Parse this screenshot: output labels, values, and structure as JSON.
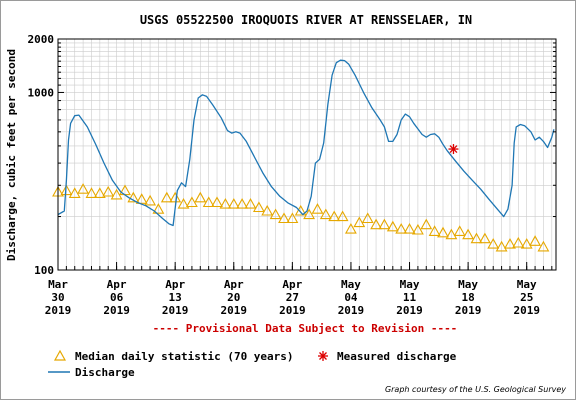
{
  "chart_data": {
    "type": "line",
    "title": "USGS 05522500 IROQUOIS RIVER AT RENSSELAER, IN",
    "ylabel": "Discharge, cubic feet per second",
    "y_scale": "log",
    "ylim": [
      100,
      2000
    ],
    "y_ticks": [
      {
        "value": 100,
        "label": "100"
      },
      {
        "value": 1000,
        "label": "1000"
      },
      {
        "value": 2000,
        "label": "2000"
      }
    ],
    "x_range": [
      "2019-03-30",
      "2019-05-28T12:00"
    ],
    "x_ticks": [
      {
        "date": "2019-03-30",
        "month": "Mar",
        "day": "30",
        "year": "2019"
      },
      {
        "date": "2019-04-06",
        "month": "Apr",
        "day": "06",
        "year": "2019"
      },
      {
        "date": "2019-04-13",
        "month": "Apr",
        "day": "13",
        "year": "2019"
      },
      {
        "date": "2019-04-20",
        "month": "Apr",
        "day": "20",
        "year": "2019"
      },
      {
        "date": "2019-04-27",
        "month": "Apr",
        "day": "27",
        "year": "2019"
      },
      {
        "date": "2019-05-04",
        "month": "May",
        "day": "04",
        "year": "2019"
      },
      {
        "date": "2019-05-11",
        "month": "May",
        "day": "11",
        "year": "2019"
      },
      {
        "date": "2019-05-18",
        "month": "May",
        "day": "18",
        "year": "2019"
      },
      {
        "date": "2019-05-25",
        "month": "May",
        "day": "25",
        "year": "2019"
      }
    ],
    "grid": true,
    "series": [
      {
        "name": "Discharge",
        "kind": "line",
        "color": "#1f77b4",
        "points": [
          {
            "x": "2019-03-30T00:00",
            "y": 205
          },
          {
            "x": "2019-03-30T18:00",
            "y": 215
          },
          {
            "x": "2019-03-31T00:00",
            "y": 320
          },
          {
            "x": "2019-03-31T06:00",
            "y": 540
          },
          {
            "x": "2019-03-31T12:00",
            "y": 670
          },
          {
            "x": "2019-04-01T00:00",
            "y": 740
          },
          {
            "x": "2019-04-01T12:00",
            "y": 745
          },
          {
            "x": "2019-04-02T12:00",
            "y": 640
          },
          {
            "x": "2019-04-03T12:00",
            "y": 510
          },
          {
            "x": "2019-04-04T12:00",
            "y": 400
          },
          {
            "x": "2019-04-05T12:00",
            "y": 320
          },
          {
            "x": "2019-04-06T12:00",
            "y": 275
          },
          {
            "x": "2019-04-07T12:00",
            "y": 255
          },
          {
            "x": "2019-04-08T12:00",
            "y": 240
          },
          {
            "x": "2019-04-09T12:00",
            "y": 230
          },
          {
            "x": "2019-04-10T12:00",
            "y": 215
          },
          {
            "x": "2019-04-11T12:00",
            "y": 195
          },
          {
            "x": "2019-04-12T06:00",
            "y": 182
          },
          {
            "x": "2019-04-12T18:00",
            "y": 178
          },
          {
            "x": "2019-04-13T06:00",
            "y": 280
          },
          {
            "x": "2019-04-13T18:00",
            "y": 310
          },
          {
            "x": "2019-04-14T06:00",
            "y": 295
          },
          {
            "x": "2019-04-14T18:00",
            "y": 420
          },
          {
            "x": "2019-04-15T06:00",
            "y": 700
          },
          {
            "x": "2019-04-15T18:00",
            "y": 930
          },
          {
            "x": "2019-04-16T06:00",
            "y": 970
          },
          {
            "x": "2019-04-16T18:00",
            "y": 950
          },
          {
            "x": "2019-04-17T12:00",
            "y": 850
          },
          {
            "x": "2019-04-18T12:00",
            "y": 720
          },
          {
            "x": "2019-04-19T06:00",
            "y": 610
          },
          {
            "x": "2019-04-19T18:00",
            "y": 590
          },
          {
            "x": "2019-04-20T06:00",
            "y": 600
          },
          {
            "x": "2019-04-20T18:00",
            "y": 590
          },
          {
            "x": "2019-04-21T12:00",
            "y": 530
          },
          {
            "x": "2019-04-22T12:00",
            "y": 430
          },
          {
            "x": "2019-04-23T12:00",
            "y": 350
          },
          {
            "x": "2019-04-24T12:00",
            "y": 295
          },
          {
            "x": "2019-04-25T12:00",
            "y": 260
          },
          {
            "x": "2019-04-26T12:00",
            "y": 238
          },
          {
            "x": "2019-04-27T12:00",
            "y": 225
          },
          {
            "x": "2019-04-28T06:00",
            "y": 205
          },
          {
            "x": "2019-04-28T18:00",
            "y": 215
          },
          {
            "x": "2019-04-29T06:00",
            "y": 260
          },
          {
            "x": "2019-04-29T18:00",
            "y": 400
          },
          {
            "x": "2019-04-30T06:00",
            "y": 420
          },
          {
            "x": "2019-04-30T18:00",
            "y": 520
          },
          {
            "x": "2019-05-01T06:00",
            "y": 860
          },
          {
            "x": "2019-05-01T18:00",
            "y": 1250
          },
          {
            "x": "2019-05-02T06:00",
            "y": 1470
          },
          {
            "x": "2019-05-02T18:00",
            "y": 1520
          },
          {
            "x": "2019-05-03T06:00",
            "y": 1510
          },
          {
            "x": "2019-05-03T18:00",
            "y": 1440
          },
          {
            "x": "2019-05-04T12:00",
            "y": 1250
          },
          {
            "x": "2019-05-05T12:00",
            "y": 1000
          },
          {
            "x": "2019-05-06T12:00",
            "y": 820
          },
          {
            "x": "2019-05-07T12:00",
            "y": 700
          },
          {
            "x": "2019-05-08T00:00",
            "y": 640
          },
          {
            "x": "2019-05-08T12:00",
            "y": 530
          },
          {
            "x": "2019-05-09T00:00",
            "y": 530
          },
          {
            "x": "2019-05-09T12:00",
            "y": 580
          },
          {
            "x": "2019-05-10T00:00",
            "y": 700
          },
          {
            "x": "2019-05-10T12:00",
            "y": 755
          },
          {
            "x": "2019-05-11T00:00",
            "y": 730
          },
          {
            "x": "2019-05-11T12:00",
            "y": 670
          },
          {
            "x": "2019-05-12T12:00",
            "y": 580
          },
          {
            "x": "2019-05-13T00:00",
            "y": 560
          },
          {
            "x": "2019-05-13T12:00",
            "y": 580
          },
          {
            "x": "2019-05-14T00:00",
            "y": 585
          },
          {
            "x": "2019-05-14T12:00",
            "y": 560
          },
          {
            "x": "2019-05-15T00:00",
            "y": 510
          },
          {
            "x": "2019-05-15T12:00",
            "y": 470
          },
          {
            "x": "2019-05-16T12:00",
            "y": 410
          },
          {
            "x": "2019-05-17T12:00",
            "y": 360
          },
          {
            "x": "2019-05-18T12:00",
            "y": 320
          },
          {
            "x": "2019-05-19T12:00",
            "y": 285
          },
          {
            "x": "2019-05-20T12:00",
            "y": 250
          },
          {
            "x": "2019-05-21T12:00",
            "y": 220
          },
          {
            "x": "2019-05-22T06:00",
            "y": 200
          },
          {
            "x": "2019-05-22T18:00",
            "y": 220
          },
          {
            "x": "2019-05-23T06:00",
            "y": 300
          },
          {
            "x": "2019-05-23T12:00",
            "y": 520
          },
          {
            "x": "2019-05-23T18:00",
            "y": 640
          },
          {
            "x": "2019-05-24T06:00",
            "y": 660
          },
          {
            "x": "2019-05-24T18:00",
            "y": 650
          },
          {
            "x": "2019-05-25T12:00",
            "y": 600
          },
          {
            "x": "2019-05-26T00:00",
            "y": 540
          },
          {
            "x": "2019-05-26T12:00",
            "y": 560
          },
          {
            "x": "2019-05-27T00:00",
            "y": 530
          },
          {
            "x": "2019-05-27T12:00",
            "y": 490
          },
          {
            "x": "2019-05-28T00:00",
            "y": 560
          },
          {
            "x": "2019-05-28T06:00",
            "y": 620
          }
        ]
      },
      {
        "name": "Median daily statistic (70 years)",
        "kind": "triangle",
        "color": "#e6a800",
        "points": [
          {
            "x": "2019-03-30",
            "y": 275
          },
          {
            "x": "2019-03-31",
            "y": 280
          },
          {
            "x": "2019-04-01",
            "y": 270
          },
          {
            "x": "2019-04-02",
            "y": 285
          },
          {
            "x": "2019-04-03",
            "y": 270
          },
          {
            "x": "2019-04-04",
            "y": 270
          },
          {
            "x": "2019-04-05",
            "y": 275
          },
          {
            "x": "2019-04-06",
            "y": 265
          },
          {
            "x": "2019-04-07",
            "y": 280
          },
          {
            "x": "2019-04-08",
            "y": 255
          },
          {
            "x": "2019-04-09",
            "y": 250
          },
          {
            "x": "2019-04-10",
            "y": 245
          },
          {
            "x": "2019-04-11",
            "y": 220
          },
          {
            "x": "2019-04-12",
            "y": 255
          },
          {
            "x": "2019-04-13",
            "y": 255
          },
          {
            "x": "2019-04-14",
            "y": 235
          },
          {
            "x": "2019-04-15",
            "y": 240
          },
          {
            "x": "2019-04-16",
            "y": 255
          },
          {
            "x": "2019-04-17",
            "y": 240
          },
          {
            "x": "2019-04-18",
            "y": 240
          },
          {
            "x": "2019-04-19",
            "y": 235
          },
          {
            "x": "2019-04-20",
            "y": 235
          },
          {
            "x": "2019-04-21",
            "y": 235
          },
          {
            "x": "2019-04-22",
            "y": 235
          },
          {
            "x": "2019-04-23",
            "y": 225
          },
          {
            "x": "2019-04-24",
            "y": 215
          },
          {
            "x": "2019-04-25",
            "y": 205
          },
          {
            "x": "2019-04-26",
            "y": 195
          },
          {
            "x": "2019-04-27",
            "y": 195
          },
          {
            "x": "2019-04-28",
            "y": 215
          },
          {
            "x": "2019-04-29",
            "y": 205
          },
          {
            "x": "2019-04-30",
            "y": 220
          },
          {
            "x": "2019-05-01",
            "y": 205
          },
          {
            "x": "2019-05-02",
            "y": 200
          },
          {
            "x": "2019-05-03",
            "y": 200
          },
          {
            "x": "2019-05-04",
            "y": 170
          },
          {
            "x": "2019-05-05",
            "y": 185
          },
          {
            "x": "2019-05-06",
            "y": 195
          },
          {
            "x": "2019-05-07",
            "y": 180
          },
          {
            "x": "2019-05-08",
            "y": 180
          },
          {
            "x": "2019-05-09",
            "y": 175
          },
          {
            "x": "2019-05-10",
            "y": 170
          },
          {
            "x": "2019-05-11",
            "y": 170
          },
          {
            "x": "2019-05-12",
            "y": 168
          },
          {
            "x": "2019-05-13",
            "y": 180
          },
          {
            "x": "2019-05-14",
            "y": 165
          },
          {
            "x": "2019-05-15",
            "y": 162
          },
          {
            "x": "2019-05-16",
            "y": 158
          },
          {
            "x": "2019-05-17",
            "y": 165
          },
          {
            "x": "2019-05-18",
            "y": 158
          },
          {
            "x": "2019-05-19",
            "y": 150
          },
          {
            "x": "2019-05-20",
            "y": 150
          },
          {
            "x": "2019-05-21",
            "y": 140
          },
          {
            "x": "2019-05-22",
            "y": 135
          },
          {
            "x": "2019-05-23",
            "y": 140
          },
          {
            "x": "2019-05-24",
            "y": 142
          },
          {
            "x": "2019-05-25",
            "y": 140
          },
          {
            "x": "2019-05-26",
            "y": 145
          },
          {
            "x": "2019-05-27",
            "y": 135
          }
        ]
      },
      {
        "name": "Measured discharge",
        "kind": "asterisk",
        "color": "#dd0000",
        "points": [
          {
            "x": "2019-05-16T06:00",
            "y": 480
          }
        ]
      }
    ],
    "legend": {
      "position": "bottom-left",
      "items": [
        {
          "label": "Median daily statistic (70 years)",
          "marker": "triangle",
          "color": "#e6a800"
        },
        {
          "label": "Measured discharge",
          "marker": "asterisk",
          "color": "#dd0000"
        },
        {
          "label": "Discharge",
          "marker": "line",
          "color": "#1f77b4"
        }
      ]
    },
    "provisional_note": "---- Provisional Data Subject to Revision ----",
    "credit": "Graph courtesy of the U.S. Geological Survey"
  }
}
